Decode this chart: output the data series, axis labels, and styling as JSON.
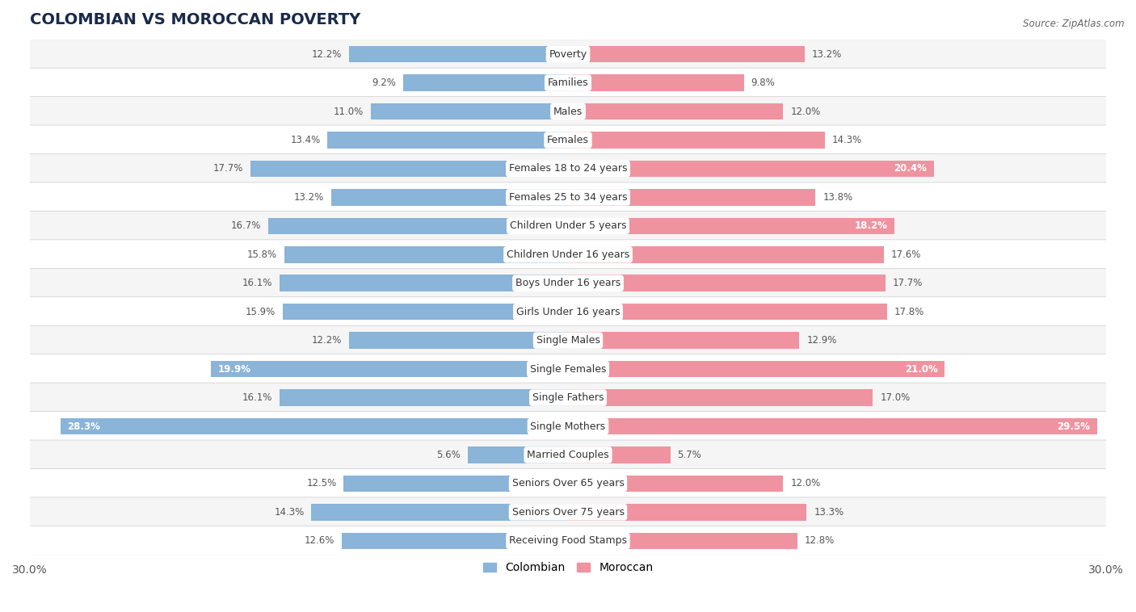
{
  "title": "COLOMBIAN VS MOROCCAN POVERTY",
  "source": "Source: ZipAtlas.com",
  "categories": [
    "Poverty",
    "Families",
    "Males",
    "Females",
    "Females 18 to 24 years",
    "Females 25 to 34 years",
    "Children Under 5 years",
    "Children Under 16 years",
    "Boys Under 16 years",
    "Girls Under 16 years",
    "Single Males",
    "Single Females",
    "Single Fathers",
    "Single Mothers",
    "Married Couples",
    "Seniors Over 65 years",
    "Seniors Over 75 years",
    "Receiving Food Stamps"
  ],
  "colombian": [
    12.2,
    9.2,
    11.0,
    13.4,
    17.7,
    13.2,
    16.7,
    15.8,
    16.1,
    15.9,
    12.2,
    19.9,
    16.1,
    28.3,
    5.6,
    12.5,
    14.3,
    12.6
  ],
  "moroccan": [
    13.2,
    9.8,
    12.0,
    14.3,
    20.4,
    13.8,
    18.2,
    17.6,
    17.7,
    17.8,
    12.9,
    21.0,
    17.0,
    29.5,
    5.7,
    12.0,
    13.3,
    12.8
  ],
  "colombian_color": "#8ab4d8",
  "moroccan_color": "#f093a0",
  "background_color": "#ffffff",
  "row_colors": [
    "#f5f5f5",
    "#ffffff"
  ],
  "x_max": 30.0,
  "bar_height": 0.58,
  "label_fontsize": 9.0,
  "value_fontsize": 8.5,
  "title_fontsize": 14,
  "legend_fontsize": 10,
  "inside_threshold": 18.0
}
